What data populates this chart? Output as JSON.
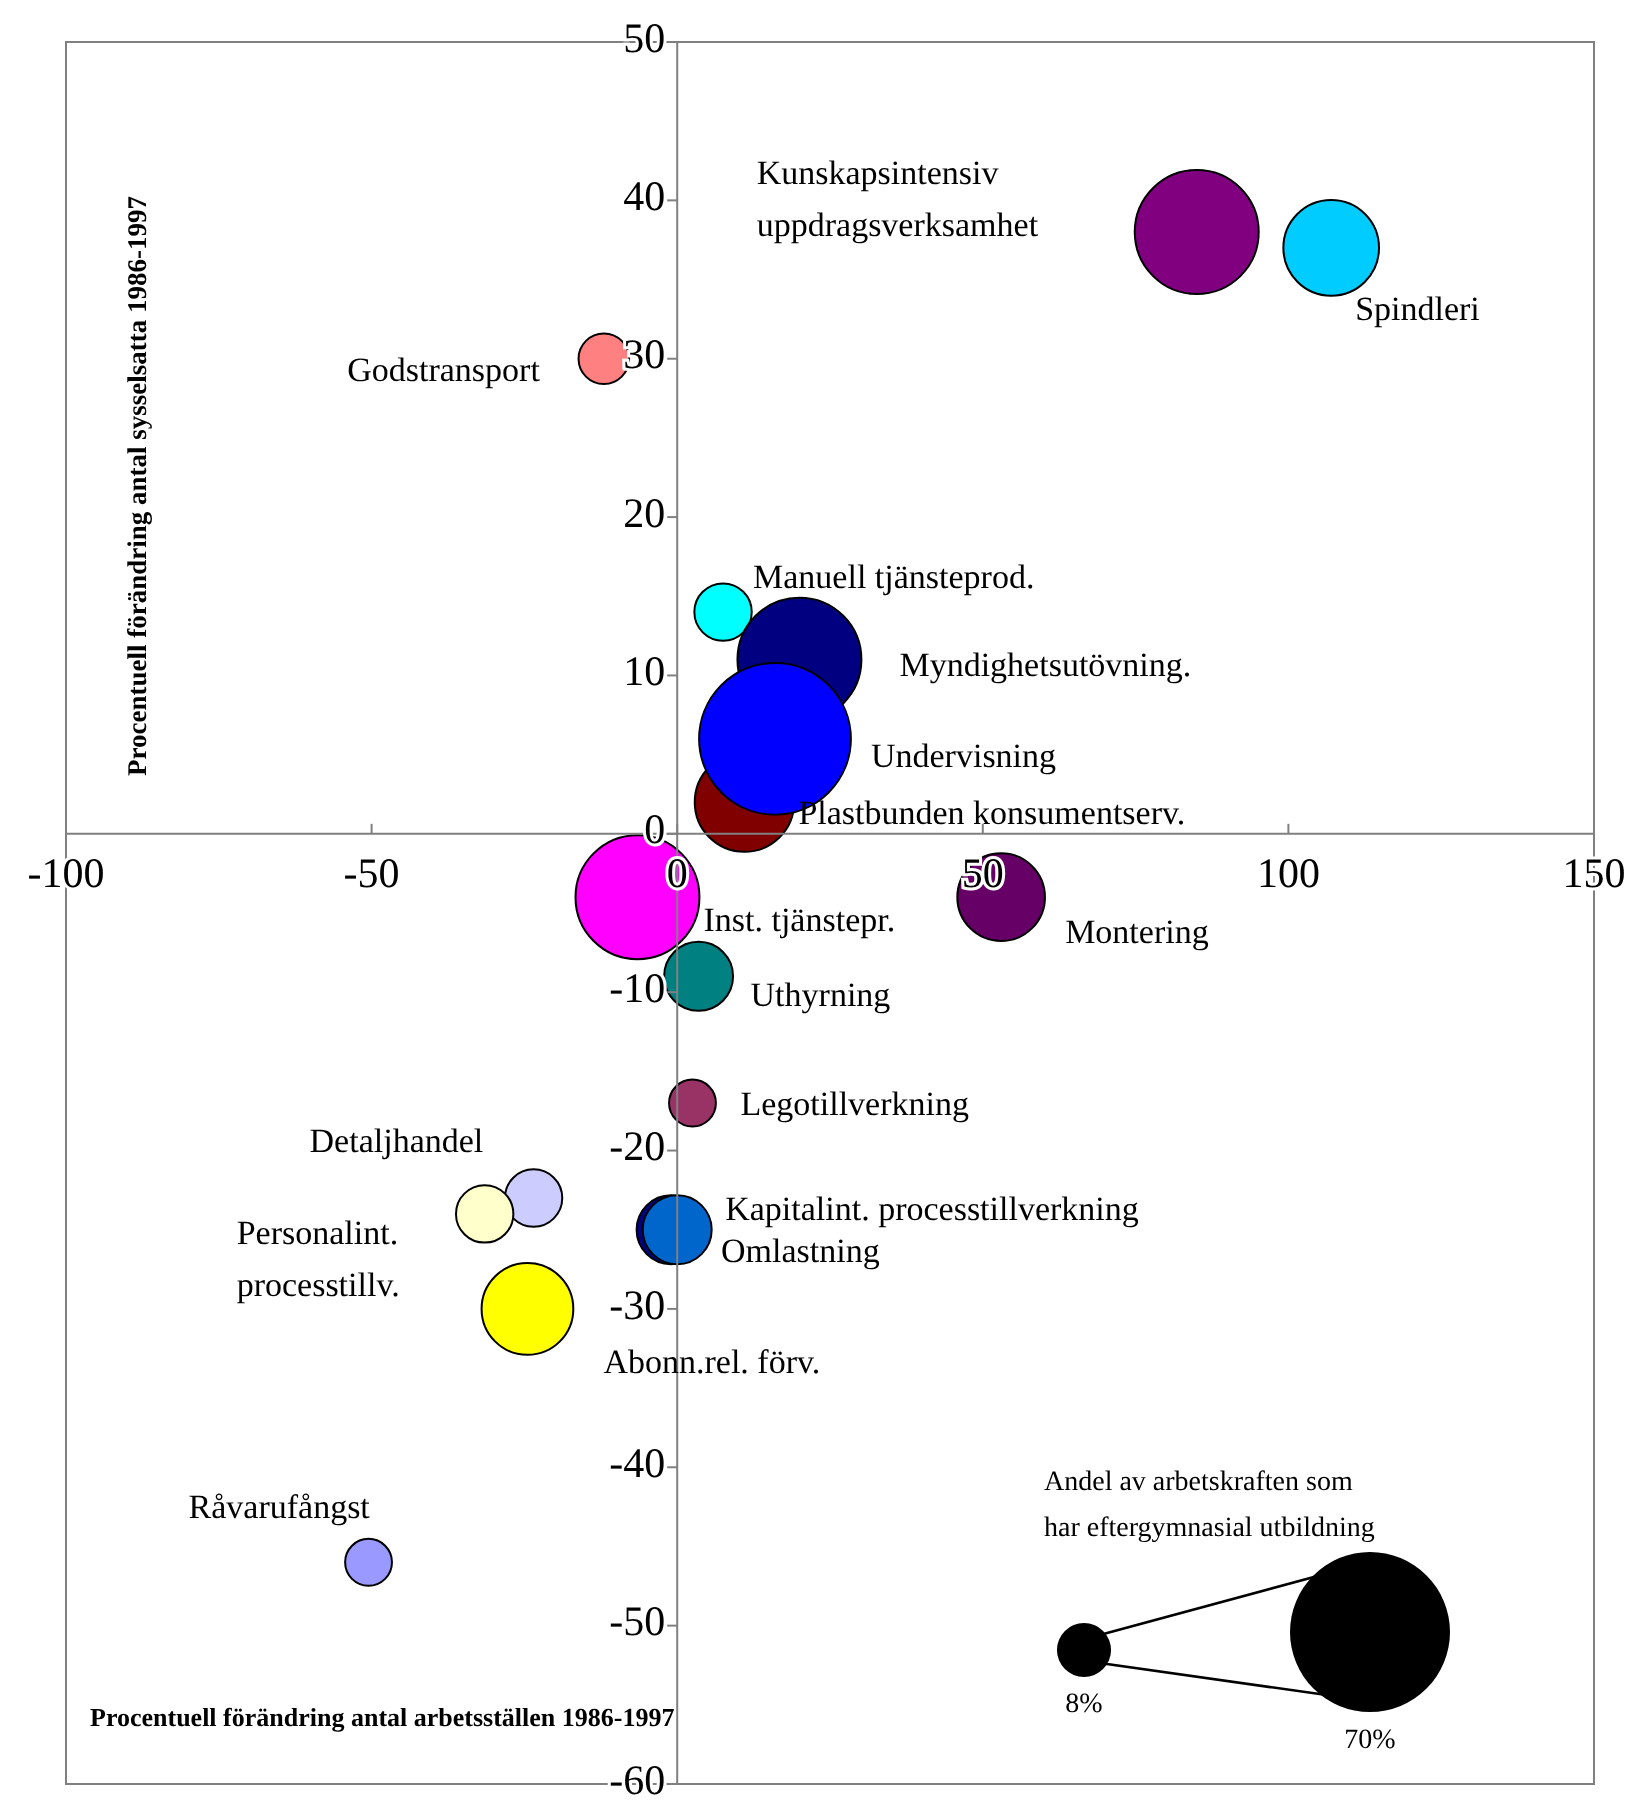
{
  "chart_data": {
    "type": "bubble",
    "xlabel": "Procentuell förändring antal arbetsställen 1986-1997",
    "ylabel": "Procentuell förändring antal sysselsatta 1986-1997",
    "legend_title": "Andel av arbetskraften som har eftergymnasial utbildning",
    "size_legend": [
      {
        "value": 8,
        "label": "8%"
      },
      {
        "value": 70,
        "label": "70%"
      }
    ],
    "xlim": [
      -100,
      150
    ],
    "xticks": [
      -100,
      -50,
      0,
      50,
      100,
      150
    ],
    "ylim": [
      -60,
      50
    ],
    "yticks": [
      -60,
      -50,
      -40,
      -30,
      -20,
      -10,
      0,
      10,
      20,
      30,
      40,
      50
    ],
    "series": [
      {
        "name": "Kunskapsintensiv uppdragsverksamhet",
        "color": "#800080",
        "x": [
          85
        ],
        "values": [
          38
        ],
        "sizes": [
          42
        ]
      },
      {
        "name": "Spindleri",
        "color": "#00ccff",
        "x": [
          107
        ],
        "values": [
          37
        ],
        "sizes": [
          25
        ]
      },
      {
        "name": "Godstransport",
        "color": "#ff8080",
        "x": [
          -12
        ],
        "values": [
          30
        ],
        "sizes": [
          7
        ]
      },
      {
        "name": "Manuell tjänsteprod.",
        "color": "#00ffff",
        "x": [
          7.5
        ],
        "values": [
          14
        ],
        "sizes": [
          9
        ]
      },
      {
        "name": "Myndighetsutövning.",
        "color": "#000080",
        "x": [
          20
        ],
        "values": [
          11
        ],
        "sizes": [
          42
        ]
      },
      {
        "name": "Plastbunden konsumentserv.",
        "color": "#800000",
        "x": [
          11
        ],
        "values": [
          2
        ],
        "sizes": [
          27
        ]
      },
      {
        "name": "Undervisning",
        "color": "#0000ff",
        "x": [
          16
        ],
        "values": [
          6
        ],
        "sizes": [
          63
        ]
      },
      {
        "name": "Inst. tjänstepr.",
        "color": "#ff00ff",
        "x": [
          -6.5
        ],
        "values": [
          -4
        ],
        "sizes": [
          42
        ]
      },
      {
        "name": "Montering",
        "color": "#660066",
        "x": [
          53
        ],
        "values": [
          -4
        ],
        "sizes": [
          21
        ]
      },
      {
        "name": "Uthyrning",
        "color": "#008080",
        "x": [
          3.5
        ],
        "values": [
          -9
        ],
        "sizes": [
          13
        ]
      },
      {
        "name": "Legotillverkning",
        "color": "#993366",
        "x": [
          2.5
        ],
        "values": [
          -17
        ],
        "sizes": [
          6
        ]
      },
      {
        "name": "Detaljhandel",
        "color": "#ccccff",
        "x": [
          -23.5
        ],
        "values": [
          -23
        ],
        "sizes": [
          9
        ]
      },
      {
        "name": "Personalint. processtillv.",
        "color": "#ffffcc",
        "x": [
          -31.5
        ],
        "values": [
          -24
        ],
        "sizes": [
          9
        ]
      },
      {
        "name": "Omlastning",
        "color": "#000080",
        "x": [
          -1
        ],
        "values": [
          -25
        ],
        "sizes": [
          13
        ]
      },
      {
        "name": "Kapitalint. processtillverkning",
        "color": "#0066cc",
        "x": [
          0
        ],
        "values": [
          -25
        ],
        "sizes": [
          13
        ]
      },
      {
        "name": "Abonn.rel. förv.",
        "color": "#ffff00",
        "x": [
          -24.5
        ],
        "values": [
          -30
        ],
        "sizes": [
          23
        ]
      },
      {
        "name": "Råvarufångst",
        "color": "#9999ff",
        "x": [
          -50.5
        ],
        "values": [
          -46
        ],
        "sizes": [
          6
        ]
      }
    ]
  }
}
